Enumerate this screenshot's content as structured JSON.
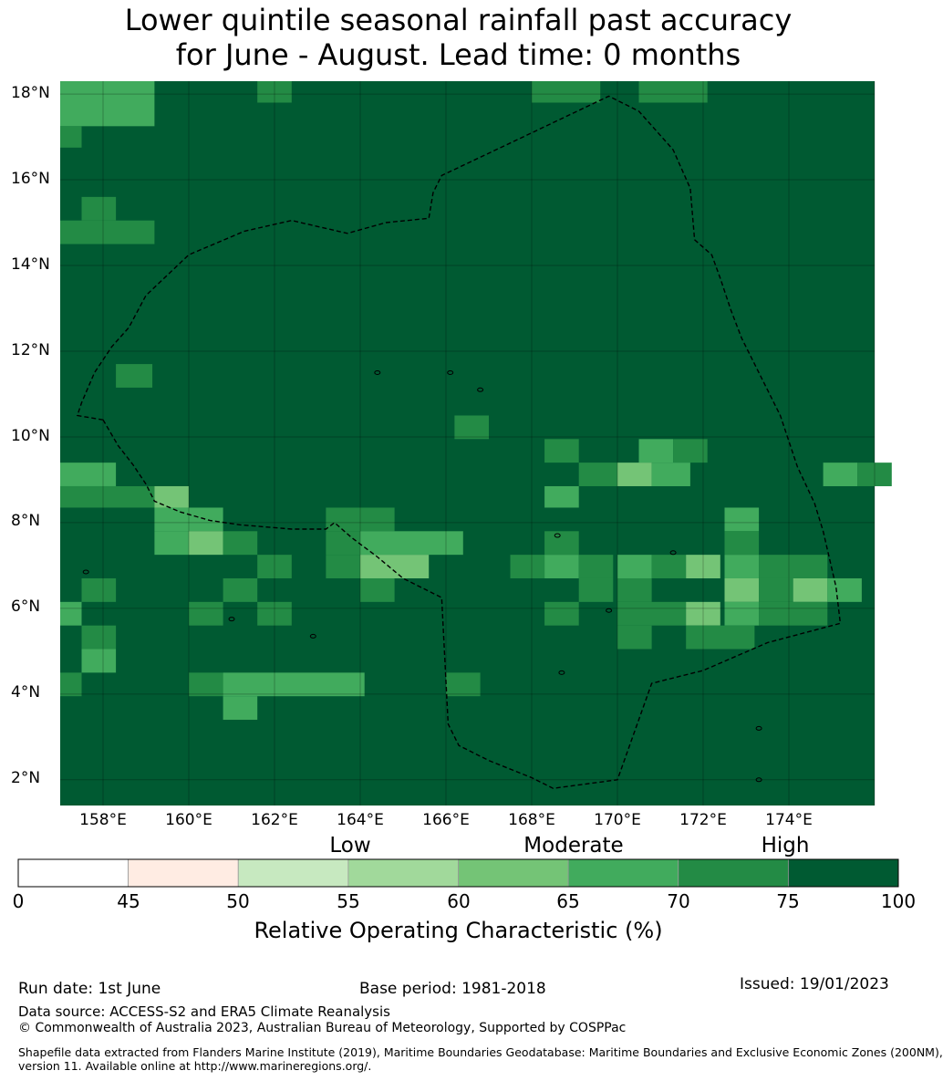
{
  "title": {
    "line1": "Lower quintile seasonal rainfall past accuracy",
    "line2": "for June - August. Lead time: 0 months"
  },
  "map": {
    "lat_labels": [
      "18°N",
      "16°N",
      "14°N",
      "12°N",
      "10°N",
      "8°N",
      "6°N",
      "4°N",
      "2°N"
    ],
    "lon_labels": [
      "158°E",
      "160°E",
      "162°E",
      "164°E",
      "166°E",
      "168°E",
      "170°E",
      "172°E",
      "174°E"
    ],
    "lon_range": [
      157.0,
      176.0
    ],
    "lat_range": [
      1.4,
      18.3
    ],
    "base_color": "#005a32",
    "boundary": "dashed maritime EEZ boundary",
    "cells": [
      [
        157.0,
        18.3,
        2.2,
        1.05,
        "#41ab5d"
      ],
      [
        157.0,
        17.25,
        0.5,
        0.5,
        "#238b45"
      ],
      [
        161.6,
        18.3,
        0.8,
        0.5,
        "#238b45"
      ],
      [
        168.0,
        18.3,
        1.6,
        0.5,
        "#238b45"
      ],
      [
        170.5,
        18.3,
        1.6,
        0.5,
        "#238b45"
      ],
      [
        157.5,
        15.6,
        0.8,
        0.55,
        "#238b45"
      ],
      [
        157.0,
        15.05,
        2.2,
        0.55,
        "#238b45"
      ],
      [
        158.3,
        11.7,
        0.85,
        0.55,
        "#238b45"
      ],
      [
        166.2,
        10.5,
        0.8,
        0.55,
        "#238b45"
      ],
      [
        168.3,
        9.95,
        0.8,
        0.55,
        "#238b45"
      ],
      [
        170.5,
        9.95,
        0.8,
        0.55,
        "#41ab5d"
      ],
      [
        171.3,
        9.95,
        0.8,
        0.55,
        "#238b45"
      ],
      [
        157.0,
        9.4,
        1.3,
        0.55,
        "#41ab5d"
      ],
      [
        169.1,
        9.4,
        0.9,
        0.55,
        "#238b45"
      ],
      [
        170.0,
        9.4,
        0.8,
        0.55,
        "#74c476"
      ],
      [
        170.8,
        9.4,
        0.9,
        0.55,
        "#41ab5d"
      ],
      [
        174.8,
        9.4,
        0.8,
        0.55,
        "#41ab5d"
      ],
      [
        175.6,
        9.4,
        0.8,
        0.55,
        "#238b45"
      ],
      [
        157.0,
        8.85,
        2.2,
        0.5,
        "#238b45"
      ],
      [
        159.2,
        8.85,
        0.8,
        0.5,
        "#74c476"
      ],
      [
        168.3,
        8.85,
        0.8,
        0.5,
        "#41ab5d"
      ],
      [
        159.2,
        8.35,
        1.6,
        0.55,
        "#41ab5d"
      ],
      [
        163.2,
        8.35,
        1.6,
        0.55,
        "#238b45"
      ],
      [
        172.5,
        8.35,
        0.8,
        0.55,
        "#41ab5d"
      ],
      [
        159.2,
        7.8,
        0.8,
        0.55,
        "#41ab5d"
      ],
      [
        160.0,
        7.8,
        0.8,
        0.55,
        "#74c476"
      ],
      [
        160.8,
        7.8,
        0.8,
        0.55,
        "#238b45"
      ],
      [
        163.2,
        7.8,
        0.8,
        0.55,
        "#238b45"
      ],
      [
        164.0,
        7.8,
        2.4,
        0.55,
        "#41ab5d"
      ],
      [
        168.3,
        7.8,
        0.8,
        0.55,
        "#238b45"
      ],
      [
        172.5,
        7.8,
        0.8,
        0.55,
        "#238b45"
      ],
      [
        161.6,
        7.25,
        0.8,
        0.55,
        "#238b45"
      ],
      [
        163.2,
        7.25,
        0.8,
        0.55,
        "#238b45"
      ],
      [
        164.0,
        7.25,
        1.6,
        0.55,
        "#74c476"
      ],
      [
        167.5,
        7.25,
        0.8,
        0.55,
        "#238b45"
      ],
      [
        168.3,
        7.25,
        0.8,
        0.55,
        "#41ab5d"
      ],
      [
        169.1,
        7.25,
        0.8,
        0.55,
        "#238b45"
      ],
      [
        170.0,
        7.25,
        0.8,
        0.55,
        "#41ab5d"
      ],
      [
        170.8,
        7.25,
        0.8,
        0.55,
        "#238b45"
      ],
      [
        171.6,
        7.25,
        0.8,
        0.55,
        "#74c476"
      ],
      [
        172.5,
        7.25,
        0.8,
        0.55,
        "#41ab5d"
      ],
      [
        173.3,
        7.25,
        1.6,
        0.55,
        "#238b45"
      ],
      [
        157.5,
        6.7,
        0.8,
        0.55,
        "#238b45"
      ],
      [
        160.8,
        6.7,
        0.8,
        0.55,
        "#238b45"
      ],
      [
        164.0,
        6.7,
        0.8,
        0.55,
        "#238b45"
      ],
      [
        169.1,
        6.7,
        0.8,
        0.55,
        "#238b45"
      ],
      [
        170.0,
        6.7,
        0.8,
        0.55,
        "#238b45"
      ],
      [
        172.5,
        6.7,
        0.8,
        0.55,
        "#74c476"
      ],
      [
        173.3,
        6.7,
        0.8,
        0.55,
        "#238b45"
      ],
      [
        174.1,
        6.7,
        0.8,
        0.55,
        "#74c476"
      ],
      [
        174.9,
        6.7,
        0.8,
        0.55,
        "#41ab5d"
      ],
      [
        157.0,
        6.15,
        0.5,
        0.55,
        "#41ab5d"
      ],
      [
        160.0,
        6.15,
        0.8,
        0.55,
        "#238b45"
      ],
      [
        161.6,
        6.15,
        0.8,
        0.55,
        "#238b45"
      ],
      [
        168.3,
        6.15,
        0.8,
        0.55,
        "#238b45"
      ],
      [
        170.0,
        6.15,
        1.6,
        0.55,
        "#238b45"
      ],
      [
        171.6,
        6.15,
        0.8,
        0.55,
        "#74c476"
      ],
      [
        172.5,
        6.15,
        0.8,
        0.55,
        "#41ab5d"
      ],
      [
        173.3,
        6.15,
        1.6,
        0.55,
        "#238b45"
      ],
      [
        157.5,
        5.6,
        0.8,
        0.55,
        "#238b45"
      ],
      [
        170.0,
        5.6,
        0.8,
        0.55,
        "#238b45"
      ],
      [
        171.6,
        5.6,
        1.6,
        0.55,
        "#238b45"
      ],
      [
        157.5,
        5.05,
        0.8,
        0.55,
        "#41ab5d"
      ],
      [
        157.0,
        4.5,
        0.5,
        0.55,
        "#238b45"
      ],
      [
        160.0,
        4.5,
        0.8,
        0.55,
        "#238b45"
      ],
      [
        160.8,
        4.5,
        3.3,
        0.55,
        "#41ab5d"
      ],
      [
        166.0,
        4.5,
        0.8,
        0.55,
        "#238b45"
      ],
      [
        160.8,
        3.95,
        0.8,
        0.55,
        "#41ab5d"
      ]
    ],
    "eez_path": [
      [
        158.0,
        10.4
      ],
      [
        158.35,
        9.8
      ],
      [
        158.7,
        9.35
      ],
      [
        159.0,
        8.9
      ],
      [
        159.2,
        8.5
      ],
      [
        159.8,
        8.25
      ],
      [
        160.5,
        8.05
      ],
      [
        161.2,
        7.95
      ],
      [
        162.4,
        7.85
      ],
      [
        163.2,
        7.85
      ],
      [
        163.4,
        8.0
      ],
      [
        163.8,
        7.65
      ],
      [
        164.4,
        7.2
      ],
      [
        165.0,
        6.7
      ],
      [
        165.9,
        6.25
      ],
      [
        166.05,
        3.3
      ],
      [
        166.3,
        2.8
      ],
      [
        167.0,
        2.45
      ],
      [
        168.0,
        2.05
      ],
      [
        168.5,
        1.8
      ],
      [
        170.0,
        2.0
      ],
      [
        170.8,
        4.25
      ],
      [
        172.0,
        4.55
      ],
      [
        173.5,
        5.2
      ],
      [
        175.2,
        5.65
      ],
      [
        175.1,
        6.5
      ],
      [
        174.8,
        7.8
      ],
      [
        174.6,
        8.45
      ],
      [
        174.2,
        9.3
      ],
      [
        173.8,
        10.5
      ],
      [
        172.9,
        12.3
      ],
      [
        172.65,
        12.95
      ],
      [
        172.4,
        13.7
      ],
      [
        172.2,
        14.25
      ],
      [
        171.8,
        14.6
      ],
      [
        171.7,
        15.8
      ],
      [
        171.3,
        16.7
      ],
      [
        170.5,
        17.6
      ],
      [
        169.8,
        17.95
      ],
      [
        167.8,
        17.0
      ],
      [
        165.9,
        16.1
      ],
      [
        165.7,
        15.7
      ],
      [
        165.6,
        15.1
      ],
      [
        164.6,
        15.0
      ],
      [
        163.7,
        14.75
      ],
      [
        162.4,
        15.05
      ],
      [
        161.3,
        14.8
      ],
      [
        160.0,
        14.25
      ],
      [
        159.0,
        13.3
      ],
      [
        158.6,
        12.55
      ],
      [
        158.2,
        12.1
      ],
      [
        157.8,
        11.5
      ],
      [
        157.5,
        10.8
      ],
      [
        157.4,
        10.5
      ]
    ]
  },
  "colorbar": {
    "bins": [
      {
        "from": 0,
        "to": 45,
        "color": "#ffffff"
      },
      {
        "from": 45,
        "to": 50,
        "color": "#ffece3"
      },
      {
        "from": 50,
        "to": 55,
        "color": "#c7e9c0"
      },
      {
        "from": 55,
        "to": 60,
        "color": "#a1d99b"
      },
      {
        "from": 60,
        "to": 65,
        "color": "#74c476"
      },
      {
        "from": 65,
        "to": 70,
        "color": "#41ab5d"
      },
      {
        "from": 70,
        "to": 75,
        "color": "#238b45"
      },
      {
        "from": 75,
        "to": 100,
        "color": "#005a32"
      }
    ],
    "ticks": [
      "0",
      "45",
      "50",
      "55",
      "60",
      "65",
      "70",
      "75",
      "100"
    ],
    "classes": [
      "Low",
      "Moderate",
      "High"
    ],
    "label": "Relative Operating Characteristic (%)"
  },
  "footer": {
    "run_date": "Run date: 1st June",
    "base_period": "Base period: 1981-2018",
    "issued": "Issued: 19/01/2023",
    "data_source": "Data source: ACCESS-S2 and ERA5 Climate Reanalysis",
    "copyright": "© Commonwealth of Australia 2023, Australian Bureau of Meteorology, Supported by COSPPac",
    "shapefile_line1": "Shapefile data extracted from Flanders Marine Institute (2019), Maritime Boundaries Geodatabase: Maritime Boundaries and Exclusive Economic Zones (200NM),",
    "shapefile_line2": "version 11. Available online at http://www.marineregions.org/."
  }
}
